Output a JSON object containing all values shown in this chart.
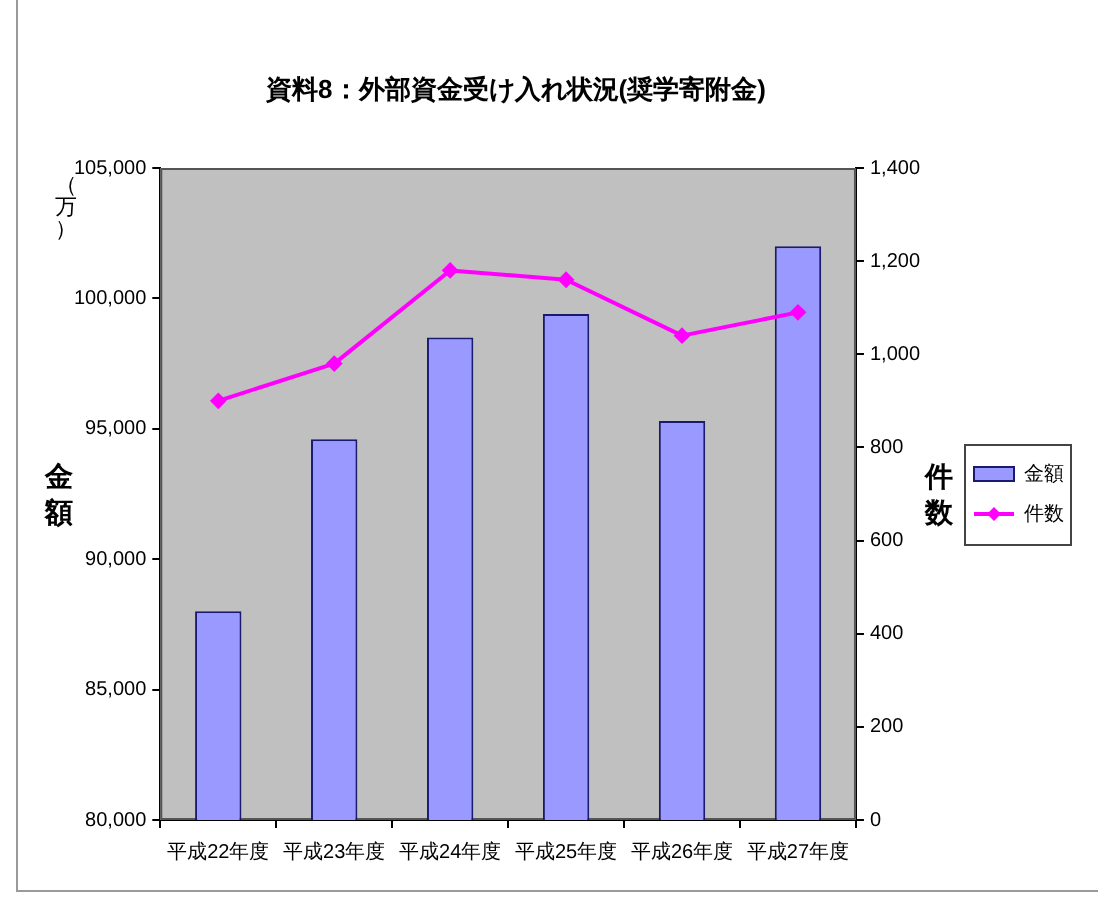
{
  "chart_data": {
    "type": "bar",
    "title": "資料8：外部資金受け入れ状況(奨学寄附金)",
    "categories": [
      "平成22年度",
      "平成23年度",
      "平成24年度",
      "平成25年度",
      "平成26年度",
      "平成27年度"
    ],
    "series": [
      {
        "name": "金額",
        "color": "#9999ff",
        "values": [
          88000,
          94600,
          98500,
          99400,
          95300,
          102000
        ]
      },
      {
        "name": "件数",
        "type": "line",
        "axis": "y2",
        "color": "#ff00ff",
        "values": [
          900,
          980,
          1180,
          1160,
          1040,
          1090
        ]
      }
    ],
    "ylabel": "金額",
    "y2label": "件数",
    "annotations": [
      "（万）"
    ],
    "ylim": [
      80000,
      105000
    ],
    "yticks": [
      {
        "value": 80000,
        "label": "80,000"
      },
      {
        "value": 85000,
        "label": "85,000"
      },
      {
        "value": 90000,
        "label": "90,000"
      },
      {
        "value": 95000,
        "label": "95,000"
      },
      {
        "value": 100000,
        "label": "100,000"
      },
      {
        "value": 105000,
        "label": "105,000"
      }
    ],
    "y2lim": [
      0,
      1400
    ],
    "y2ticks": [
      0,
      200,
      400,
      600,
      800,
      {
        "value": 1000,
        "label": "1,000"
      },
      {
        "value": 1200,
        "label": "1,200"
      },
      {
        "value": 1400,
        "label": "1,400"
      }
    ],
    "grid": false,
    "legend": "right",
    "marker": "diamond",
    "line_style": "solid"
  }
}
